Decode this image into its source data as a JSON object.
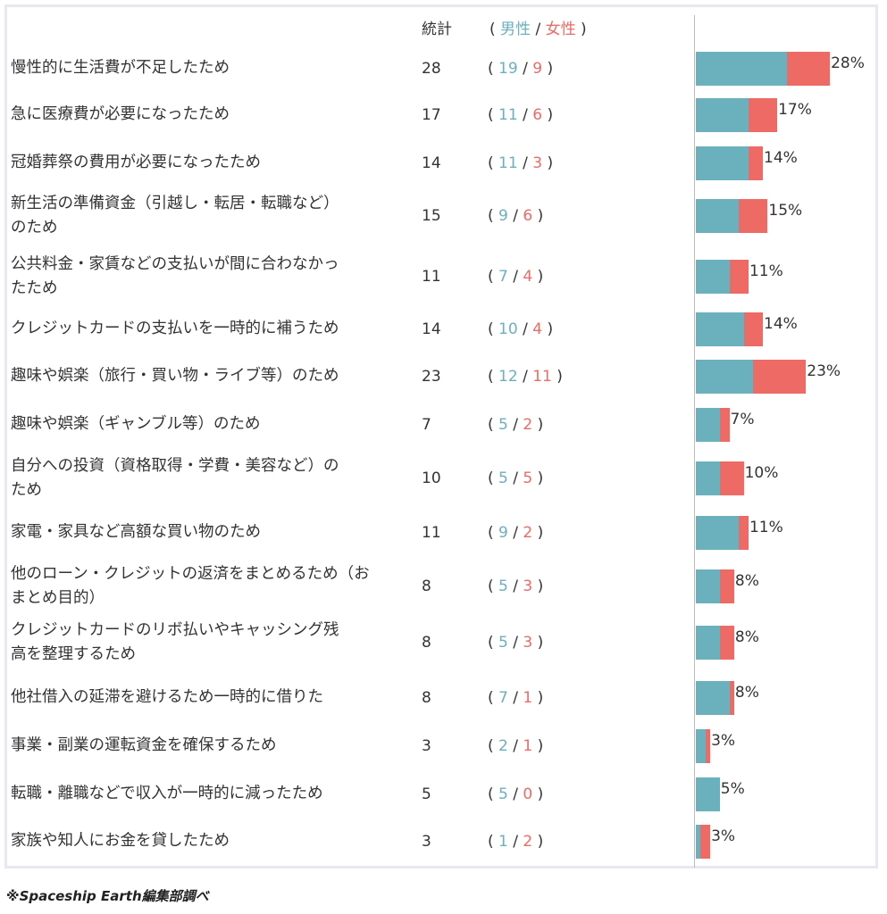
{
  "header": {
    "total_label": "統計",
    "open_paren": "(",
    "male_label": "男性",
    "slash": "/",
    "female_label": "女性",
    "close_paren": ")"
  },
  "colors": {
    "male": "#6ab0bd",
    "female": "#ee6a65"
  },
  "chart_data": {
    "type": "bar",
    "orientation": "horizontal",
    "stacked": true,
    "categories": [
      "慢性的に生活費が不足したため",
      "急に医療費が必要になったため",
      "冠婚葬祭の費用が必要になったため",
      "新生活の準備資金（引越し・転居・転職など）のため",
      "公共料金・家賃などの支払いが間に合わなかったため",
      "クレジットカードの支払いを一時的に補うため",
      "趣味や娯楽（旅行・買い物・ライブ等）のため",
      "趣味や娯楽（ギャンブル等）のため",
      "自分への投資（資格取得・学費・美容など）のため",
      "家電・家具など高額な買い物のため",
      "他のローン・クレジットの返済をまとめるため（おまとめ目的）",
      "クレジットカードのリボ払いやキャッシング残高を整理するため",
      "他社借入の延滞を避けるため一時的に借りた",
      "事業・副業の運転資金を確保するため",
      "転職・離職などで収入が一時的に減ったため",
      "家族や知人にお金を貸したため"
    ],
    "totals": [
      28,
      17,
      14,
      15,
      11,
      14,
      23,
      7,
      10,
      11,
      8,
      8,
      8,
      3,
      5,
      3
    ],
    "series": [
      {
        "name": "男性",
        "values": [
          19,
          11,
          11,
          9,
          7,
          10,
          12,
          5,
          5,
          9,
          5,
          5,
          7,
          2,
          5,
          1
        ]
      },
      {
        "name": "女性",
        "values": [
          9,
          6,
          3,
          6,
          4,
          4,
          11,
          2,
          5,
          2,
          3,
          3,
          1,
          1,
          0,
          2
        ]
      }
    ],
    "percent_labels": [
      "28%",
      "17%",
      "14%",
      "15%",
      "11%",
      "14%",
      "23%",
      "7%",
      "10%",
      "11%",
      "8%",
      "8%",
      "8%",
      "3%",
      "5%",
      "3%"
    ]
  },
  "footnote": "※Spaceship Earth編集部調べ"
}
